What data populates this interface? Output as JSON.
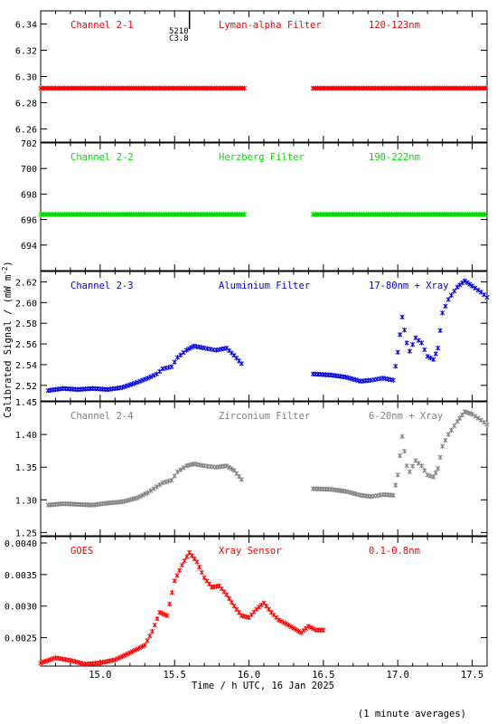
{
  "figure": {
    "ylabel": "Calibrated Signal / (mW m",
    "ylabel_sup": "-2",
    "ylabel_tail": ")",
    "xlabel": "Time / h UTC, 16 Jan 2025",
    "footnote": "(1 minute averages)",
    "x_ticks": [
      "15.0",
      "15.5",
      "16.0",
      "16.5",
      "17.0",
      "17.5"
    ],
    "xlim": [
      14.6,
      17.6
    ]
  },
  "chart_data": [
    {
      "type": "scatter",
      "panel": "Channel 2-1",
      "labels": [
        "Channel 2-1",
        "Lyman-alpha Filter",
        "120-123nm"
      ],
      "color": "#ff0000",
      "ylim": [
        6.25,
        6.35
      ],
      "y_ticks": [
        6.26,
        6.28,
        6.3,
        6.32,
        6.34
      ],
      "y_tick_labels": [
        "6.26",
        "6.28",
        "6.30",
        "6.32",
        "6.34"
      ],
      "marker_text": [
        "5210",
        "C3.8"
      ],
      "marker_x": 15.6,
      "segments": [
        {
          "x0": 14.6,
          "x1": 15.97,
          "y": 6.291
        },
        {
          "x0": 16.43,
          "x1": 17.6,
          "y": 6.291
        }
      ]
    },
    {
      "type": "scatter",
      "panel": "Channel 2-2",
      "labels": [
        "Channel 2-2",
        "Herzberg Filter",
        "190-222nm"
      ],
      "color": "#00dd00",
      "ylim": [
        692,
        702
      ],
      "y_ticks": [
        694,
        696,
        698,
        700,
        702
      ],
      "y_tick_labels": [
        "694",
        "696",
        "698",
        "700",
        "702"
      ],
      "segments": [
        {
          "x0": 14.6,
          "x1": 15.97,
          "y": 696.4
        },
        {
          "x0": 16.43,
          "x1": 17.6,
          "y": 696.4
        }
      ]
    },
    {
      "type": "scatter",
      "panel": "Channel 2-3",
      "labels": [
        "Channel 2-3",
        "Aluminium Filter",
        "17-80nm + Xray"
      ],
      "color": "#0000dd",
      "ylim": [
        2.505,
        2.63
      ],
      "y_ticks": [
        2.52,
        2.54,
        2.56,
        2.58,
        2.6,
        2.62
      ],
      "y_tick_labels": [
        "2.52",
        "2.54",
        "2.56",
        "2.58",
        "2.60",
        "2.62"
      ],
      "x": [
        14.65,
        14.75,
        14.85,
        14.95,
        15.05,
        15.15,
        15.25,
        15.32,
        15.38,
        15.42,
        15.48,
        15.52,
        15.58,
        15.63,
        15.7,
        15.78,
        15.85,
        15.9,
        15.95,
        16.43,
        16.55,
        16.65,
        16.75,
        16.82,
        16.9,
        16.97,
        17.0,
        17.03,
        17.06,
        17.08,
        17.12,
        17.16,
        17.2,
        17.24,
        17.27,
        17.3,
        17.34,
        17.4,
        17.45,
        17.5,
        17.56,
        17.6
      ],
      "y": [
        2.515,
        2.517,
        2.516,
        2.517,
        2.516,
        2.518,
        2.523,
        2.527,
        2.531,
        2.536,
        2.538,
        2.547,
        2.554,
        2.558,
        2.556,
        2.554,
        2.556,
        2.549,
        2.541,
        2.531,
        2.53,
        2.528,
        2.524,
        2.525,
        2.527,
        2.525,
        2.552,
        2.586,
        2.561,
        2.553,
        2.566,
        2.561,
        2.548,
        2.545,
        2.556,
        2.59,
        2.603,
        2.615,
        2.621,
        2.616,
        2.61,
        2.605
      ]
    },
    {
      "type": "scatter",
      "panel": "Channel 2-4",
      "labels": [
        "Channel 2-4",
        "Zirconium Filter",
        "6-20nm + Xray"
      ],
      "color": "#808080",
      "ylim": [
        1.245,
        1.45
      ],
      "y_ticks": [
        1.25,
        1.3,
        1.35,
        1.4,
        1.45
      ],
      "y_tick_labels": [
        "1.25",
        "1.30",
        "1.35",
        "1.40",
        "1.45"
      ],
      "x": [
        14.65,
        14.75,
        14.85,
        14.95,
        15.05,
        15.15,
        15.25,
        15.32,
        15.38,
        15.42,
        15.48,
        15.52,
        15.58,
        15.63,
        15.7,
        15.78,
        15.85,
        15.9,
        15.95,
        16.43,
        16.55,
        16.65,
        16.75,
        16.82,
        16.9,
        16.97,
        17.0,
        17.03,
        17.06,
        17.08,
        17.12,
        17.16,
        17.2,
        17.24,
        17.27,
        17.3,
        17.34,
        17.4,
        17.45,
        17.5,
        17.56,
        17.6
      ],
      "y": [
        1.292,
        1.294,
        1.293,
        1.292,
        1.295,
        1.297,
        1.303,
        1.311,
        1.32,
        1.326,
        1.33,
        1.343,
        1.352,
        1.355,
        1.352,
        1.35,
        1.352,
        1.345,
        1.331,
        1.317,
        1.316,
        1.313,
        1.307,
        1.305,
        1.308,
        1.307,
        1.338,
        1.397,
        1.352,
        1.343,
        1.36,
        1.352,
        1.338,
        1.335,
        1.348,
        1.382,
        1.4,
        1.42,
        1.435,
        1.431,
        1.422,
        1.415
      ]
    },
    {
      "type": "scatter",
      "panel": "GOES",
      "labels": [
        "GOES",
        "Xray Sensor",
        "0.1-0.8nm"
      ],
      "color": "#ff0000",
      "ylim": [
        0.00205,
        0.0041
      ],
      "y_ticks": [
        0.0025,
        0.003,
        0.0035,
        0.004
      ],
      "y_tick_labels": [
        "0.0025",
        "0.0030",
        "0.0035",
        "0.0040"
      ],
      "x": [
        14.6,
        14.7,
        14.8,
        14.9,
        15.0,
        15.1,
        15.2,
        15.3,
        15.35,
        15.4,
        15.45,
        15.5,
        15.55,
        15.6,
        15.65,
        15.7,
        15.75,
        15.8,
        15.85,
        15.9,
        15.95,
        16.0,
        16.05,
        16.1,
        16.15,
        16.2,
        16.25,
        16.3,
        16.35,
        16.4,
        16.45,
        16.5
      ],
      "y": [
        0.0021,
        0.00218,
        0.00214,
        0.00208,
        0.0021,
        0.00215,
        0.00226,
        0.00238,
        0.0026,
        0.0029,
        0.00285,
        0.0034,
        0.00365,
        0.00385,
        0.0037,
        0.00345,
        0.0033,
        0.00332,
        0.00318,
        0.003,
        0.00285,
        0.00282,
        0.00295,
        0.00305,
        0.0029,
        0.00278,
        0.00272,
        0.00265,
        0.00258,
        0.00268,
        0.00262,
        0.00262
      ]
    }
  ]
}
